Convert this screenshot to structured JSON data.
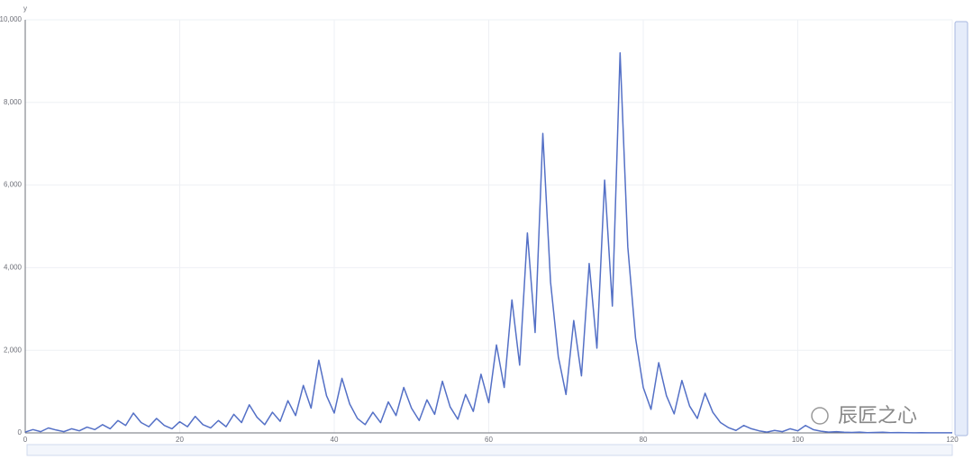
{
  "chart_data": {
    "type": "line",
    "y_label": "y",
    "watermark": "辰匠之心",
    "color": "#5470c6",
    "grid": true,
    "x": [
      0,
      1,
      2,
      3,
      4,
      5,
      6,
      7,
      8,
      9,
      10,
      11,
      12,
      13,
      14,
      15,
      16,
      17,
      18,
      19,
      20,
      21,
      22,
      23,
      24,
      25,
      26,
      27,
      28,
      29,
      30,
      31,
      32,
      33,
      34,
      35,
      36,
      37,
      38,
      39,
      40,
      41,
      42,
      43,
      44,
      45,
      46,
      47,
      48,
      49,
      50,
      51,
      52,
      53,
      54,
      55,
      56,
      57,
      58,
      59,
      60,
      61,
      62,
      63,
      64,
      65,
      66,
      67,
      68,
      69,
      70,
      71,
      72,
      73,
      74,
      75,
      76,
      77,
      78,
      79,
      80,
      81,
      82,
      83,
      84,
      85,
      86,
      87,
      88,
      89,
      90,
      91,
      92,
      93,
      94,
      95,
      96,
      97,
      98,
      99,
      100,
      101,
      102,
      103,
      104,
      105,
      106,
      107,
      108,
      109,
      110,
      111,
      112,
      113,
      114,
      115,
      116,
      117,
      118,
      119,
      120
    ],
    "values": [
      20,
      80,
      30,
      120,
      70,
      30,
      100,
      50,
      140,
      80,
      200,
      100,
      300,
      180,
      480,
      250,
      150,
      350,
      180,
      100,
      270,
      150,
      400,
      200,
      120,
      300,
      150,
      450,
      250,
      680,
      380,
      200,
      500,
      280,
      780,
      420,
      1150,
      600,
      1760,
      900,
      480,
      1320,
      700,
      350,
      200,
      500,
      250,
      750,
      420,
      1100,
      600,
      300,
      800,
      450,
      1250,
      630,
      330,
      930,
      520,
      1420,
      730,
      2130,
      1100,
      3220,
      1640,
      4840,
      2430,
      7250,
      3650,
      1850,
      930,
      2720,
      1380,
      4100,
      2050,
      6120,
      3070,
      9200,
      4500,
      2300,
      1100,
      570,
      1700,
      900,
      460,
      1270,
      650,
      350,
      960,
      500,
      250,
      130,
      60,
      180,
      100,
      50,
      20,
      60,
      30,
      100,
      50,
      180,
      80,
      40,
      20,
      30,
      15,
      10,
      20,
      5,
      10,
      15,
      5,
      8,
      5,
      3,
      5,
      2,
      4,
      3,
      2
    ],
    "xlim": [
      0,
      120
    ],
    "xticks": [
      0,
      20,
      40,
      60,
      80,
      100,
      120
    ],
    "ylim": [
      0,
      10000
    ],
    "yticks": [
      0,
      {
        "value": 2000,
        "label": "2,000"
      },
      {
        "value": 4000,
        "label": "4,000"
      },
      {
        "value": 6000,
        "label": "6,000"
      },
      {
        "value": 8000,
        "label": "8,000"
      },
      {
        "value": 10000,
        "label": "10,000"
      }
    ]
  }
}
